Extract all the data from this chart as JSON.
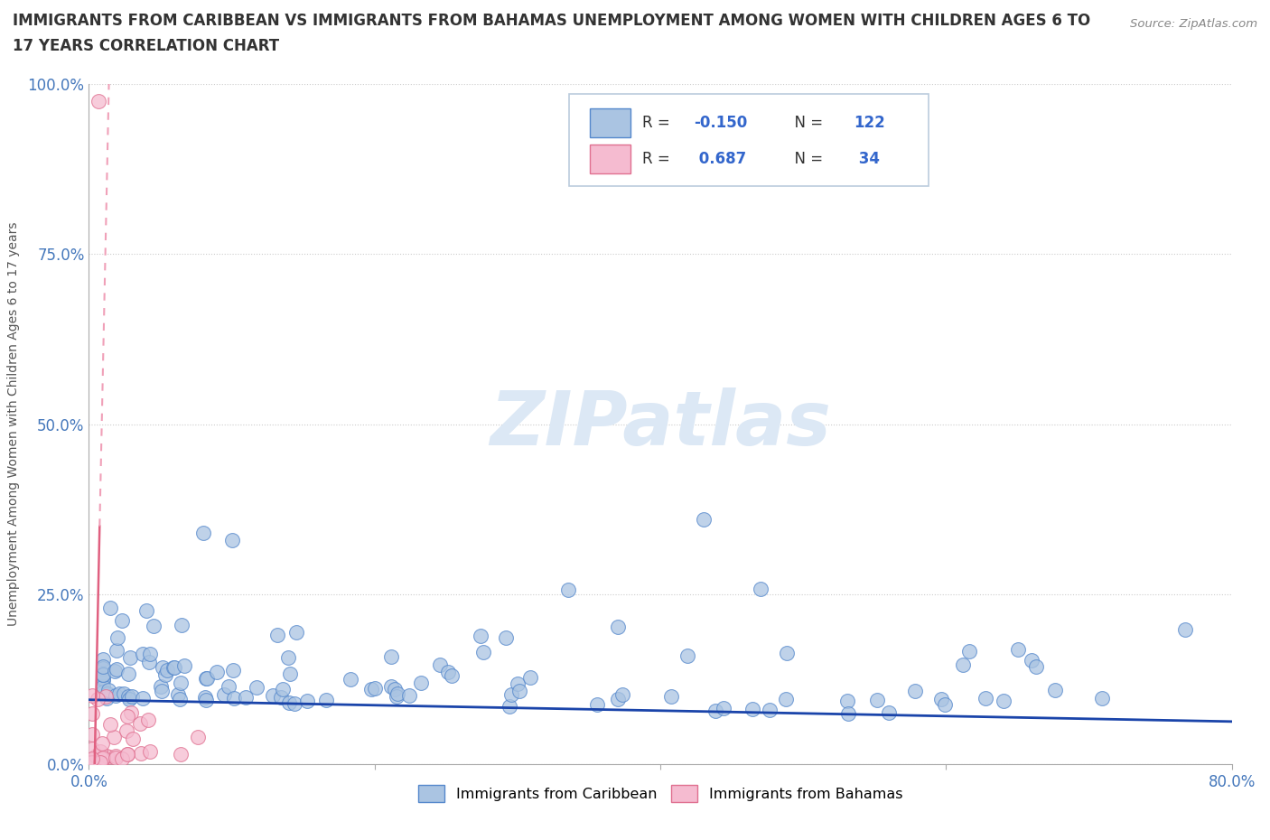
{
  "title_line1": "IMMIGRANTS FROM CARIBBEAN VS IMMIGRANTS FROM BAHAMAS UNEMPLOYMENT AMONG WOMEN WITH CHILDREN AGES 6 TO",
  "title_line2": "17 YEARS CORRELATION CHART",
  "source": "Source: ZipAtlas.com",
  "ylabel": "Unemployment Among Women with Children Ages 6 to 17 years",
  "xlim": [
    0.0,
    0.8
  ],
  "ylim": [
    0.0,
    1.0
  ],
  "yticks": [
    0.0,
    0.25,
    0.5,
    0.75,
    1.0
  ],
  "yticklabels": [
    "0.0%",
    "25.0%",
    "50.0%",
    "75.0%",
    "100.0%"
  ],
  "xtick_vals": [
    0.0,
    0.2,
    0.4,
    0.6,
    0.8
  ],
  "xticklabels": [
    "0.0%",
    "",
    "",
    "",
    "80.0%"
  ],
  "caribbean_color": "#aac4e2",
  "caribbean_edge": "#5588cc",
  "bahamas_color": "#f5bbd0",
  "bahamas_edge": "#e07090",
  "trendline_caribbean_color": "#1a44aa",
  "trendline_bahamas_color": "#e06080",
  "trendline_bahamas_dash": "#f0a0b8",
  "legend_label_color": "#333333",
  "legend_value_color": "#3366cc",
  "tick_color": "#4477bb",
  "watermark": "ZIPatlas",
  "watermark_color": "#dce8f5",
  "legend_R_caribbean": "-0.150",
  "legend_N_caribbean": "122",
  "legend_R_bahamas": "0.687",
  "legend_N_bahamas": "34",
  "legend_label_caribbean": "Immigrants from Caribbean",
  "legend_label_bahamas": "Immigrants from Bahamas"
}
